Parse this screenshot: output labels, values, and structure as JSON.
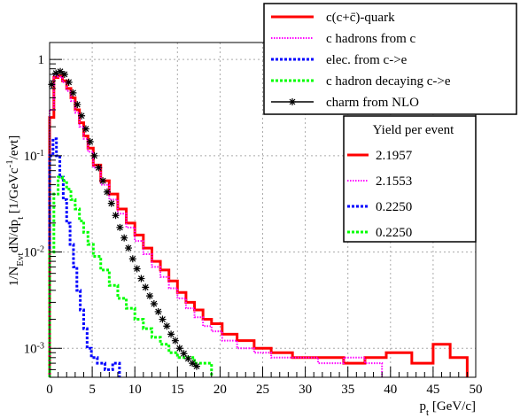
{
  "chart_data": {
    "type": "line",
    "xlabel": "p_t [GeV/c]",
    "ylabel": "1/N_Evt dN/dp_t [1/GeVc^-1/evt]",
    "xlim": [
      0,
      50
    ],
    "ylim": [
      0.0005,
      1.5
    ],
    "yscale": "log",
    "grid": true,
    "x_ticks": [
      "0",
      "5",
      "10",
      "15",
      "20",
      "25",
      "30",
      "35",
      "40",
      "45",
      "50"
    ],
    "y_ticks": [
      {
        "label": "1",
        "value": 1
      },
      {
        "label": "10^-1",
        "value": 0.1
      },
      {
        "label": "10^-2",
        "value": 0.01
      },
      {
        "label": "10^-3",
        "value": 0.001
      }
    ],
    "legend_position": "top-right",
    "legend": [
      {
        "label": "c(c+c̄)-quark",
        "color": "#ff0000",
        "style": "solid"
      },
      {
        "label": "c hadrons from c",
        "color": "#ff00ff",
        "style": "dotted"
      },
      {
        "label": "elec. from c->e",
        "color": "#0000ff",
        "style": "dashed"
      },
      {
        "label": "c hadron decaying c->e",
        "color": "#00ff00",
        "style": "dashed"
      },
      {
        "label": "charm from NLO",
        "color": "#000000",
        "style": "marker-star"
      }
    ],
    "yield_box": {
      "title": "Yield per event",
      "entries": [
        {
          "value": "2.1957",
          "color": "#ff0000",
          "style": "solid"
        },
        {
          "value": "2.1553",
          "color": "#ff00ff",
          "style": "dotted"
        },
        {
          "value": "0.2250",
          "color": "#0000ff",
          "style": "dashed"
        },
        {
          "value": "0.2250",
          "color": "#00ff00",
          "style": "dashed"
        }
      ]
    },
    "series": [
      {
        "name": "c(c+c̄)-quark",
        "color": "#ff0000",
        "x": [
          0.25,
          0.75,
          1.25,
          1.75,
          2.25,
          2.75,
          3.25,
          3.75,
          4.25,
          4.75,
          5.5,
          6.5,
          7.5,
          8.5,
          9.5,
          10.5,
          11.5,
          12.5,
          13.5,
          14.5,
          15.5,
          16.5,
          17.5,
          18.5,
          19.5,
          21,
          23,
          25,
          27,
          30,
          33,
          36,
          38,
          41,
          44,
          46,
          48
        ],
        "y": [
          0.25,
          0.65,
          0.68,
          0.6,
          0.5,
          0.4,
          0.3,
          0.22,
          0.16,
          0.12,
          0.08,
          0.055,
          0.04,
          0.028,
          0.02,
          0.015,
          0.011,
          0.008,
          0.0065,
          0.005,
          0.0038,
          0.003,
          0.0025,
          0.002,
          0.0018,
          0.0014,
          0.0012,
          0.001,
          0.0009,
          0.0008,
          0.0008,
          0.0007,
          0.0008,
          0.0009,
          0.0007,
          0.0011,
          0.0008
        ]
      },
      {
        "name": "c hadrons from c",
        "color": "#ff00ff",
        "x": [
          0.25,
          0.75,
          1.25,
          1.75,
          2.25,
          2.75,
          3.25,
          3.75,
          4.25,
          4.75,
          5.5,
          6.5,
          7.5,
          8.5,
          9.5,
          10.5,
          11.5,
          12.5,
          13.5,
          14.5,
          15.5,
          16.5,
          17.5,
          18.5,
          19.5,
          21,
          23,
          25,
          27,
          30,
          33,
          36,
          38
        ],
        "y": [
          0.3,
          0.68,
          0.66,
          0.58,
          0.47,
          0.37,
          0.28,
          0.2,
          0.15,
          0.11,
          0.075,
          0.05,
          0.035,
          0.025,
          0.018,
          0.013,
          0.0095,
          0.007,
          0.0055,
          0.0042,
          0.0033,
          0.0026,
          0.0021,
          0.0017,
          0.0015,
          0.0012,
          0.001,
          0.0009,
          0.0008,
          0.0008,
          0.0007,
          0.0008,
          0.0007
        ]
      },
      {
        "name": "elec. from c->e",
        "color": "#0000ff",
        "x": [
          0.2,
          0.6,
          1.0,
          1.4,
          1.8,
          2.2,
          2.6,
          3.0,
          3.4,
          3.8,
          4.2,
          4.6,
          5.2,
          6.0,
          7.0,
          7.8
        ],
        "y": [
          0.1,
          0.15,
          0.1,
          0.06,
          0.035,
          0.02,
          0.012,
          0.007,
          0.004,
          0.0025,
          0.0016,
          0.001,
          0.0008,
          0.0007,
          0.0006,
          0.0007
        ]
      },
      {
        "name": "c hadron decaying c->e",
        "color": "#00ff00",
        "x": [
          0.25,
          0.75,
          1.25,
          1.75,
          2.25,
          2.75,
          3.25,
          3.75,
          4.25,
          4.75,
          5.5,
          6.5,
          7.5,
          8.5,
          9.5,
          10.5,
          11.5,
          12.5,
          13.5,
          14.5,
          15.5,
          16.5,
          17.5,
          18.5
        ],
        "y": [
          0.01,
          0.04,
          0.06,
          0.055,
          0.045,
          0.035,
          0.028,
          0.021,
          0.016,
          0.012,
          0.009,
          0.0065,
          0.0045,
          0.0033,
          0.0026,
          0.002,
          0.0016,
          0.0013,
          0.0011,
          0.0009,
          0.0008,
          0.0008,
          0.0007,
          0.0007
        ]
      },
      {
        "name": "charm from NLO",
        "color": "#000000",
        "x": [
          0.25,
          0.75,
          1.25,
          1.75,
          2.25,
          2.75,
          3.25,
          3.75,
          4.25,
          4.75,
          5.25,
          5.75,
          6.25,
          6.75,
          7.25,
          7.75,
          8.25,
          8.75,
          9.25,
          9.75,
          10.25,
          10.75,
          11.25,
          11.75,
          12.25,
          12.75,
          13.25,
          13.75,
          14.25,
          14.75,
          15.25,
          15.75,
          16.25,
          16.75,
          17.25
        ],
        "y": [
          0.55,
          0.72,
          0.75,
          0.7,
          0.58,
          0.45,
          0.34,
          0.26,
          0.19,
          0.14,
          0.1,
          0.075,
          0.055,
          0.042,
          0.032,
          0.024,
          0.018,
          0.014,
          0.011,
          0.0085,
          0.0067,
          0.0053,
          0.0043,
          0.0035,
          0.0029,
          0.0024,
          0.002,
          0.0017,
          0.0014,
          0.0012,
          0.001,
          0.00088,
          0.00078,
          0.0007,
          0.00065
        ]
      }
    ]
  }
}
